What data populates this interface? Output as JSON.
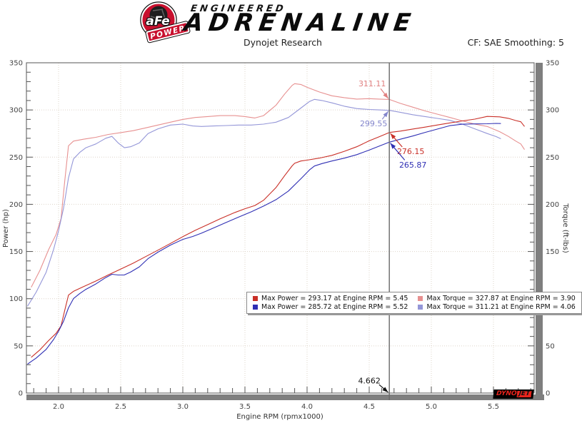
{
  "header": {
    "badge": {
      "circle_text": "aFe",
      "banner_text": "POWER"
    },
    "brand_line1": "ENGINEERED",
    "brand_line2": "ADRENALINE",
    "subtitle": "Dynojet Research",
    "correction_label": "CF: SAE Smoothing: 5"
  },
  "footer_logo": {
    "part1": "DYNO",
    "part2": "JET"
  },
  "chart_data": {
    "type": "line",
    "title": "Dynojet Research",
    "x_axis": {
      "label": "Engine RPM (rpmx1000)",
      "min": 1.74,
      "max": 5.83,
      "tick_labels": [
        "2.0",
        "2.5",
        "3.0",
        "3.5",
        "4.0",
        "4.5",
        "5.0",
        "5.5"
      ],
      "major_step": 0.5,
      "minor_step": 0.1
    },
    "y_left": {
      "label": "Power (hp)",
      "min": 0,
      "max": 350,
      "tick_labels": [
        "0",
        "50",
        "100",
        "150",
        "200",
        "250",
        "300",
        "350"
      ],
      "major_step": 50,
      "minor_step": 10
    },
    "y_right": {
      "label": "Torque (ft-lbs)",
      "min": 0,
      "max": 350,
      "tick_labels": [
        "0",
        "50",
        "100",
        "150",
        "200",
        "250",
        "300",
        "350"
      ],
      "major_step": 50,
      "minor_step": 10
    },
    "grid": true,
    "legend_position": "bottom-center-inside",
    "legend_order": [
      0,
      2,
      1,
      3
    ],
    "series": [
      {
        "name": "Max Power = 293.17 at Engine RPM = 5.45",
        "axis": "power",
        "color": "#c92f27",
        "points": [
          [
            1.78,
            37.9
          ],
          [
            1.85,
            45.8
          ],
          [
            1.92,
            55.6
          ],
          [
            1.98,
            63.3
          ],
          [
            2.02,
            71.2
          ],
          [
            2.05,
            87.8
          ],
          [
            2.08,
            103.8
          ],
          [
            2.12,
            107.8
          ],
          [
            2.2,
            112.7
          ],
          [
            2.3,
            118.7
          ],
          [
            2.4,
            125.2
          ],
          [
            2.5,
            131.4
          ],
          [
            2.6,
            137.6
          ],
          [
            2.7,
            144.5
          ],
          [
            2.8,
            151.4
          ],
          [
            2.9,
            158.5
          ],
          [
            3.0,
            165.7
          ],
          [
            3.1,
            172.4
          ],
          [
            3.2,
            178.5
          ],
          [
            3.3,
            184.7
          ],
          [
            3.42,
            191.4
          ],
          [
            3.5,
            195.3
          ],
          [
            3.58,
            198.7
          ],
          [
            3.65,
            204.3
          ],
          [
            3.75,
            217.8
          ],
          [
            3.82,
            230.5
          ],
          [
            3.88,
            240.8
          ],
          [
            3.9,
            243.5
          ],
          [
            3.95,
            245.9
          ],
          [
            4.0,
            246.8
          ],
          [
            4.1,
            249.0
          ],
          [
            4.2,
            251.9
          ],
          [
            4.3,
            256.2
          ],
          [
            4.4,
            261.0
          ],
          [
            4.5,
            267.3
          ],
          [
            4.58,
            271.6
          ],
          [
            4.662,
            276.15
          ],
          [
            4.75,
            277.6
          ],
          [
            4.85,
            279.8
          ],
          [
            4.95,
            281.8
          ],
          [
            5.05,
            284.1
          ],
          [
            5.15,
            286.3
          ],
          [
            5.25,
            288.4
          ],
          [
            5.35,
            290.3
          ],
          [
            5.45,
            293.17
          ],
          [
            5.55,
            292.7
          ],
          [
            5.62,
            291.1
          ],
          [
            5.68,
            288.8
          ],
          [
            5.72,
            287.5
          ],
          [
            5.75,
            282.5
          ]
        ]
      },
      {
        "name": "Max Power = 285.72 at Engine RPM = 5.52",
        "axis": "power",
        "color": "#2f2fb4",
        "points": [
          [
            1.75,
            30.7
          ],
          [
            1.82,
            37.1
          ],
          [
            1.9,
            46.3
          ],
          [
            1.96,
            56.7
          ],
          [
            2.0,
            65.5
          ],
          [
            2.04,
            76.1
          ],
          [
            2.08,
            90.3
          ],
          [
            2.12,
            100.1
          ],
          [
            2.17,
            105.4
          ],
          [
            2.22,
            109.9
          ],
          [
            2.3,
            115.6
          ],
          [
            2.38,
            122.4
          ],
          [
            2.43,
            125.9
          ],
          [
            2.48,
            125.1
          ],
          [
            2.53,
            125.2
          ],
          [
            2.58,
            128.2
          ],
          [
            2.65,
            133.7
          ],
          [
            2.72,
            142.4
          ],
          [
            2.8,
            149.3
          ],
          [
            2.9,
            156.8
          ],
          [
            3.0,
            162.8
          ],
          [
            3.08,
            165.9
          ],
          [
            3.15,
            169.4
          ],
          [
            3.25,
            175.1
          ],
          [
            3.35,
            180.8
          ],
          [
            3.45,
            186.6
          ],
          [
            3.55,
            192.0
          ],
          [
            3.65,
            198.1
          ],
          [
            3.75,
            204.9
          ],
          [
            3.85,
            214.1
          ],
          [
            3.95,
            227.1
          ],
          [
            4.02,
            236.5
          ],
          [
            4.06,
            240.6
          ],
          [
            4.12,
            243.2
          ],
          [
            4.2,
            245.9
          ],
          [
            4.3,
            248.9
          ],
          [
            4.4,
            252.6
          ],
          [
            4.5,
            257.5
          ],
          [
            4.58,
            261.6
          ],
          [
            4.662,
            265.87
          ],
          [
            4.75,
            269.0
          ],
          [
            4.85,
            272.4
          ],
          [
            4.95,
            276.2
          ],
          [
            5.05,
            279.8
          ],
          [
            5.15,
            283.4
          ],
          [
            5.25,
            284.9
          ],
          [
            5.35,
            285.2
          ],
          [
            5.45,
            285.4
          ],
          [
            5.52,
            285.72
          ],
          [
            5.56,
            285.6
          ]
        ]
      },
      {
        "name": "Max Torque = 327.87 at Engine RPM = 3.90",
        "axis": "torque",
        "color": "#e79090",
        "points": [
          [
            1.78,
            112
          ],
          [
            1.85,
            130
          ],
          [
            1.92,
            152
          ],
          [
            1.98,
            168
          ],
          [
            2.02,
            185
          ],
          [
            2.05,
            225
          ],
          [
            2.08,
            262
          ],
          [
            2.12,
            267
          ],
          [
            2.2,
            269
          ],
          [
            2.3,
            271
          ],
          [
            2.4,
            274
          ],
          [
            2.5,
            276
          ],
          [
            2.6,
            278
          ],
          [
            2.7,
            281
          ],
          [
            2.8,
            284
          ],
          [
            2.9,
            287
          ],
          [
            3.0,
            290
          ],
          [
            3.1,
            292
          ],
          [
            3.2,
            293
          ],
          [
            3.3,
            294
          ],
          [
            3.42,
            294
          ],
          [
            3.5,
            293
          ],
          [
            3.58,
            291.5
          ],
          [
            3.65,
            294
          ],
          [
            3.75,
            305
          ],
          [
            3.82,
            317
          ],
          [
            3.88,
            326
          ],
          [
            3.9,
            327.87
          ],
          [
            3.95,
            327
          ],
          [
            4.0,
            324
          ],
          [
            4.1,
            319
          ],
          [
            4.2,
            315
          ],
          [
            4.3,
            313
          ],
          [
            4.4,
            311.5
          ],
          [
            4.5,
            312
          ],
          [
            4.58,
            311.5
          ],
          [
            4.662,
            311.11
          ],
          [
            4.75,
            307
          ],
          [
            4.85,
            303
          ],
          [
            4.95,
            299
          ],
          [
            5.05,
            295.5
          ],
          [
            5.15,
            292
          ],
          [
            5.25,
            288.5
          ],
          [
            5.35,
            285
          ],
          [
            5.45,
            282.5
          ],
          [
            5.55,
            277
          ],
          [
            5.62,
            272
          ],
          [
            5.68,
            267
          ],
          [
            5.72,
            264
          ],
          [
            5.75,
            258
          ]
        ]
      },
      {
        "name": "Max Torque = 311.21 at Engine RPM = 4.06",
        "axis": "torque",
        "color": "#9496d8",
        "points": [
          [
            1.75,
            92
          ],
          [
            1.82,
            107
          ],
          [
            1.9,
            128
          ],
          [
            1.96,
            152
          ],
          [
            2.0,
            172
          ],
          [
            2.04,
            196
          ],
          [
            2.08,
            228
          ],
          [
            2.12,
            248
          ],
          [
            2.17,
            255
          ],
          [
            2.22,
            260
          ],
          [
            2.3,
            264
          ],
          [
            2.38,
            270
          ],
          [
            2.43,
            272
          ],
          [
            2.48,
            265
          ],
          [
            2.53,
            260
          ],
          [
            2.58,
            261
          ],
          [
            2.65,
            265
          ],
          [
            2.72,
            275
          ],
          [
            2.8,
            280
          ],
          [
            2.9,
            284
          ],
          [
            3.0,
            285
          ],
          [
            3.08,
            283
          ],
          [
            3.15,
            282.5
          ],
          [
            3.25,
            283
          ],
          [
            3.35,
            283.5
          ],
          [
            3.45,
            284
          ],
          [
            3.55,
            284
          ],
          [
            3.65,
            285
          ],
          [
            3.75,
            287
          ],
          [
            3.85,
            292
          ],
          [
            3.95,
            302
          ],
          [
            4.02,
            309
          ],
          [
            4.06,
            311.21
          ],
          [
            4.12,
            310
          ],
          [
            4.2,
            307.5
          ],
          [
            4.3,
            304
          ],
          [
            4.4,
            301.5
          ],
          [
            4.5,
            300.5
          ],
          [
            4.58,
            300
          ],
          [
            4.662,
            299.55
          ],
          [
            4.75,
            297.5
          ],
          [
            4.85,
            295
          ],
          [
            4.95,
            293
          ],
          [
            5.05,
            291
          ],
          [
            5.15,
            289
          ],
          [
            5.25,
            285
          ],
          [
            5.35,
            280
          ],
          [
            5.45,
            275
          ],
          [
            5.52,
            271.8
          ],
          [
            5.56,
            269.5
          ]
        ]
      }
    ],
    "cursor": {
      "rpm": 4.662,
      "label": "4.662",
      "color": "#6a6a6a",
      "label_offset": [
        -28,
        -17
      ]
    },
    "annotations": [
      {
        "text": "311.11",
        "rpm": 4.662,
        "value": 311.11,
        "color": "#e07f7f",
        "label_offset": [
          -24,
          -22
        ]
      },
      {
        "text": "299.55",
        "rpm": 4.662,
        "value": 299.55,
        "color": "#8486cc",
        "label_offset": [
          -22,
          19
        ]
      },
      {
        "text": "276.15",
        "rpm": 4.662,
        "value": 276.15,
        "color": "#c92f27",
        "label_offset": [
          30,
          27
        ]
      },
      {
        "text": "265.87",
        "rpm": 4.662,
        "value": 265.87,
        "color": "#2f2fb4",
        "label_offset": [
          33,
          32
        ]
      }
    ]
  }
}
